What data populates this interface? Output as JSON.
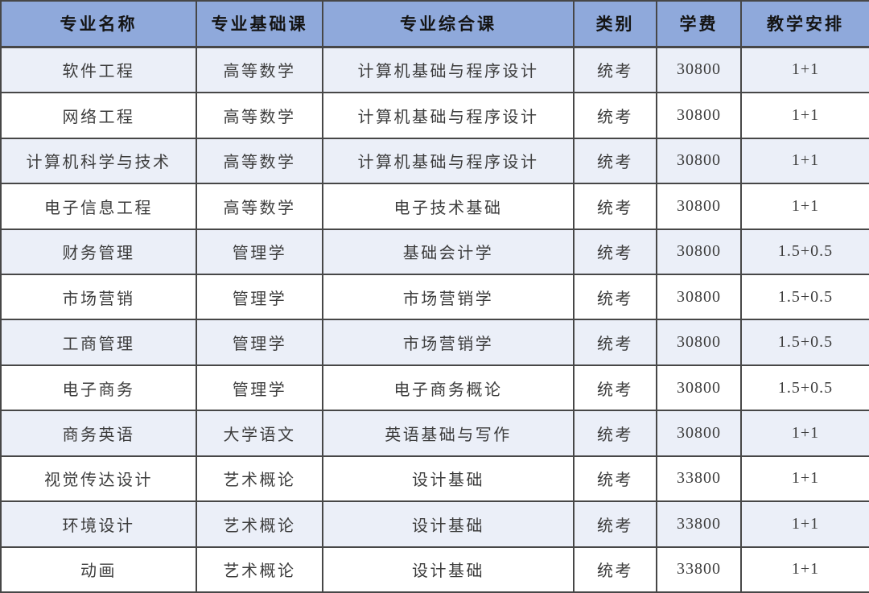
{
  "table": {
    "columns": [
      {
        "key": "major",
        "label": "专业名称"
      },
      {
        "key": "basic_course",
        "label": "专业基础课"
      },
      {
        "key": "comprehensive_course",
        "label": "专业综合课"
      },
      {
        "key": "category",
        "label": "类别"
      },
      {
        "key": "tuition",
        "label": "学费"
      },
      {
        "key": "schedule",
        "label": "教学安排"
      }
    ],
    "rows": [
      [
        "软件工程",
        "高等数学",
        "计算机基础与程序设计",
        "统考",
        "30800",
        "1+1"
      ],
      [
        "网络工程",
        "高等数学",
        "计算机基础与程序设计",
        "统考",
        "30800",
        "1+1"
      ],
      [
        "计算机科学与技术",
        "高等数学",
        "计算机基础与程序设计",
        "统考",
        "30800",
        "1+1"
      ],
      [
        "电子信息工程",
        "高等数学",
        "电子技术基础",
        "统考",
        "30800",
        "1+1"
      ],
      [
        "财务管理",
        "管理学",
        "基础会计学",
        "统考",
        "30800",
        "1.5+0.5"
      ],
      [
        "市场营销",
        "管理学",
        "市场营销学",
        "统考",
        "30800",
        "1.5+0.5"
      ],
      [
        "工商管理",
        "管理学",
        "市场营销学",
        "统考",
        "30800",
        "1.5+0.5"
      ],
      [
        "电子商务",
        "管理学",
        "电子商务概论",
        "统考",
        "30800",
        "1.5+0.5"
      ],
      [
        "商务英语",
        "大学语文",
        "英语基础与写作",
        "统考",
        "30800",
        "1+1"
      ],
      [
        "视觉传达设计",
        "艺术概论",
        "设计基础",
        "统考",
        "33800",
        "1+1"
      ],
      [
        "环境设计",
        "艺术概论",
        "设计基础",
        "统考",
        "33800",
        "1+1"
      ],
      [
        "动画",
        "艺术概论",
        "设计基础",
        "统考",
        "33800",
        "1+1"
      ]
    ]
  },
  "colors": {
    "header_bg": "#8FA9DB",
    "row_alt_bg": "#EBEFF8",
    "row_bg": "#FFFFFF",
    "border": "#474747",
    "header_text": "#141414",
    "body_text": "#3D3D3D"
  }
}
